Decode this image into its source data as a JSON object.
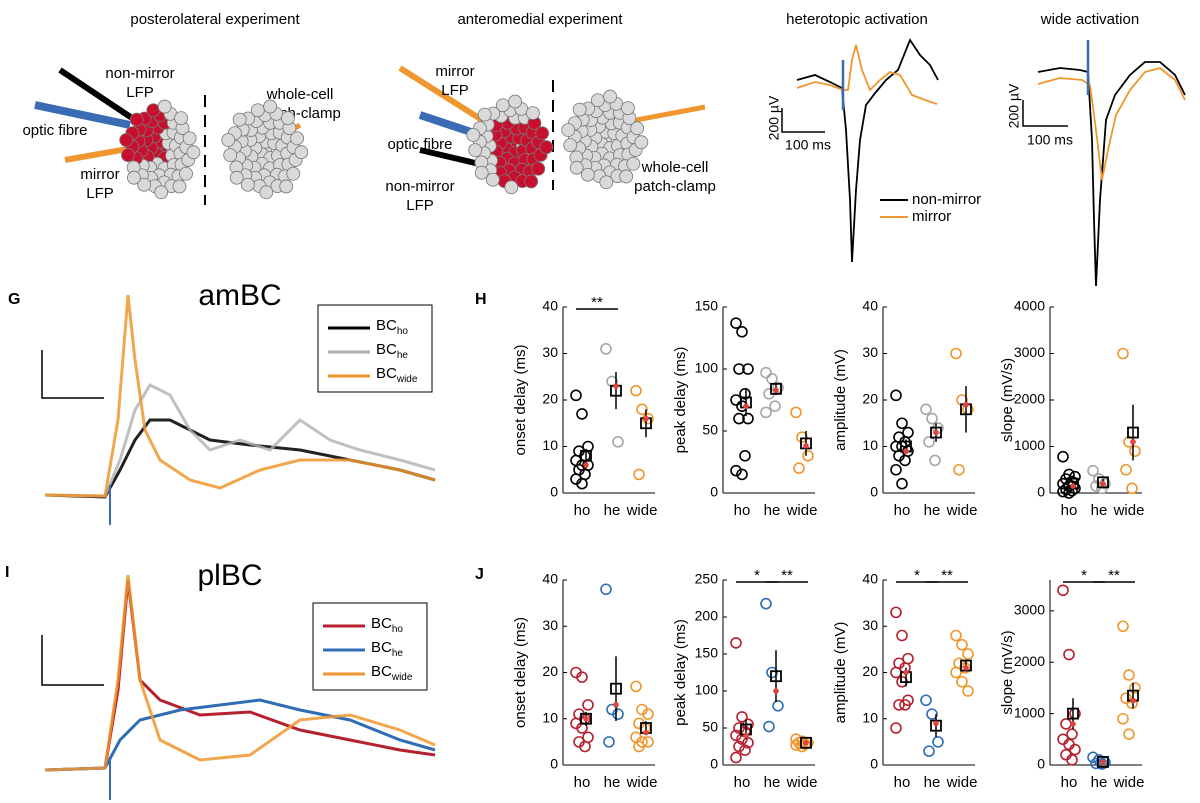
{
  "diagrams": {
    "posterolateral": {
      "title": "posterolateral experiment",
      "non_mirror": [
        "non-mirror",
        "LFP"
      ],
      "optic": "optic fibre",
      "mirror": [
        "mirror",
        "LFP"
      ],
      "patch": [
        "whole-cell",
        "patch-clamp"
      ]
    },
    "anteromedial": {
      "title": "anteromedial experiment",
      "mirror": [
        "mirror",
        "LFP"
      ],
      "optic": "optic fibre",
      "non_mirror": [
        "non-mirror",
        "LFP"
      ],
      "patch": [
        "whole-cell",
        "patch-clamp"
      ]
    }
  },
  "traces": {
    "heterotopic": {
      "title": "heterotopic activation",
      "scale_v": "200 µV",
      "scale_t": "100 ms",
      "legend": [
        "non-mirror",
        "mirror"
      ]
    },
    "wide": {
      "title": "wide activation",
      "scale_v": "200 µV",
      "scale_t": "100 ms"
    }
  },
  "panels": {
    "G": {
      "letter": "G",
      "title": "amBC",
      "legend": [
        {
          "text": "BC",
          "sub": "ho"
        },
        {
          "text": "BC",
          "sub": "he"
        },
        {
          "text": "BC",
          "sub": "wide"
        }
      ]
    },
    "H": {
      "letter": "H"
    },
    "I": {
      "letter": "I",
      "title": "plBC",
      "legend": [
        {
          "text": "BC",
          "sub": "ho"
        },
        {
          "text": "BC",
          "sub": "he"
        },
        {
          "text": "BC",
          "sub": "wide"
        }
      ]
    },
    "J": {
      "letter": "J"
    }
  },
  "chart_data": [
    {
      "type": "strip",
      "ylabel": "onset delay (ms)",
      "categories": [
        "ho",
        "he",
        "wide"
      ],
      "colors": [
        "#000000",
        "#a6a6a6",
        "#f0962e"
      ],
      "ylim": [
        0,
        40
      ],
      "yticks": [
        0,
        10,
        20,
        30,
        40
      ],
      "points": [
        [
          21,
          17,
          10,
          9,
          8,
          7,
          6,
          6,
          5,
          4,
          3,
          2
        ],
        [
          31,
          24,
          11
        ],
        [
          22,
          18,
          16,
          4
        ]
      ],
      "means": [
        8,
        22,
        15
      ],
      "errors": [
        1.5,
        4,
        3
      ],
      "medians": [
        6,
        23,
        16
      ],
      "significance": [
        "**",
        null
      ]
    },
    {
      "type": "strip",
      "ylabel": "peak delay (ms)",
      "categories": [
        "ho",
        "he",
        "wide"
      ],
      "colors": [
        "#000000",
        "#a6a6a6",
        "#f0962e"
      ],
      "ylim": [
        0,
        150
      ],
      "yticks": [
        0,
        50,
        100,
        150
      ],
      "points": [
        [
          137,
          130,
          100,
          100,
          80,
          75,
          70,
          60,
          60,
          30,
          18,
          15
        ],
        [
          97,
          92,
          85,
          80,
          70,
          65
        ],
        [
          65,
          45,
          30,
          20
        ]
      ],
      "means": [
        73,
        84,
        40
      ],
      "errors": [
        11,
        5,
        10
      ],
      "medians": [
        70,
        83,
        38
      ],
      "significance": [
        null,
        null
      ]
    },
    {
      "type": "strip",
      "ylabel": "amplitude (mV)",
      "categories": [
        "ho",
        "he",
        "wide"
      ],
      "colors": [
        "#000000",
        "#a6a6a6",
        "#f0962e"
      ],
      "ylim": [
        0,
        40
      ],
      "yticks": [
        0,
        10,
        20,
        30,
        40
      ],
      "points": [
        [
          21,
          15,
          13,
          12,
          11,
          10,
          10,
          9,
          8,
          7,
          5,
          2
        ],
        [
          18,
          16,
          14,
          11,
          7
        ],
        [
          30,
          20,
          18,
          5
        ]
      ],
      "means": [
        10,
        13,
        18
      ],
      "errors": [
        1.5,
        2,
        5
      ],
      "medians": [
        9,
        13,
        19
      ],
      "significance": [
        null,
        null
      ]
    },
    {
      "type": "strip",
      "ylabel": "slope (mV/s)",
      "categories": [
        "ho",
        "he",
        "wide"
      ],
      "colors": [
        "#000000",
        "#a6a6a6",
        "#f0962e"
      ],
      "ylim": [
        0,
        4000
      ],
      "yticks": [
        0,
        1000,
        2000,
        3000,
        4000
      ],
      "points": [
        [
          780,
          400,
          350,
          300,
          250,
          200,
          150,
          100,
          80,
          50,
          30,
          0
        ],
        [
          480,
          300,
          200,
          150,
          100
        ],
        [
          3000,
          1100,
          900,
          500,
          100
        ]
      ],
      "means": [
        200,
        230,
        1300
      ],
      "errors": [
        60,
        70,
        600
      ],
      "medians": [
        150,
        200,
        1100
      ],
      "significance": [
        null,
        null
      ]
    },
    {
      "type": "strip",
      "ylabel": "onset delay (ms)",
      "categories": [
        "ho",
        "he",
        "wide"
      ],
      "colors": [
        "#b5202e",
        "#2f6db5",
        "#f0962e"
      ],
      "ylim": [
        0,
        40
      ],
      "yticks": [
        0,
        10,
        20,
        30,
        40
      ],
      "points": [
        [
          20,
          19,
          13,
          11,
          10,
          9,
          8,
          6,
          5,
          4
        ],
        [
          38,
          12,
          11,
          5
        ],
        [
          17,
          12,
          11,
          9,
          8,
          6,
          5,
          5,
          4
        ]
      ],
      "means": [
        10,
        16.5,
        8
      ],
      "errors": [
        1.5,
        7,
        1.5
      ],
      "medians": [
        10,
        13,
        7
      ],
      "significance": [
        null,
        null
      ]
    },
    {
      "type": "strip",
      "ylabel": "peak delay (ms)",
      "categories": [
        "ho",
        "he",
        "wide"
      ],
      "colors": [
        "#b5202e",
        "#2f6db5",
        "#f0962e"
      ],
      "ylim": [
        0,
        250
      ],
      "yticks": [
        0,
        50,
        100,
        150,
        200,
        250
      ],
      "points": [
        [
          165,
          65,
          55,
          50,
          45,
          40,
          35,
          30,
          25,
          20,
          10
        ],
        [
          218,
          125,
          80,
          52
        ],
        [
          35,
          32,
          30,
          30,
          28,
          27,
          25
        ]
      ],
      "means": [
        48,
        120,
        30
      ],
      "errors": [
        13,
        35,
        2
      ],
      "medians": [
        40,
        100,
        30
      ],
      "significance": [
        "*",
        "**"
      ]
    },
    {
      "type": "strip",
      "ylabel": "amplitude (mV)",
      "categories": [
        "ho",
        "he",
        "wide"
      ],
      "colors": [
        "#b5202e",
        "#2f6db5",
        "#f0962e"
      ],
      "ylim": [
        0,
        40
      ],
      "yticks": [
        0,
        10,
        20,
        30,
        40
      ],
      "points": [
        [
          33,
          28,
          23,
          22,
          21,
          20,
          18,
          14,
          13,
          13,
          8
        ],
        [
          14,
          11,
          5,
          3
        ],
        [
          28,
          26,
          24,
          22,
          21,
          20,
          18,
          16
        ]
      ],
      "means": [
        19,
        8.5,
        21.5
      ],
      "errors": [
        2,
        2.5,
        1.3
      ],
      "medians": [
        20,
        9,
        21
      ],
      "significance": [
        "*",
        "**"
      ]
    },
    {
      "type": "strip",
      "ylabel": "slope (mV/s)",
      "categories": [
        "ho",
        "he",
        "wide"
      ],
      "colors": [
        "#b5202e",
        "#2f6db5",
        "#f0962e"
      ],
      "ylim": [
        0,
        3600
      ],
      "yticks": [
        0,
        1000,
        2000,
        3000
      ],
      "points": [
        [
          3400,
          2150,
          1000,
          800,
          600,
          500,
          400,
          300,
          200,
          100
        ],
        [
          150,
          100,
          50,
          30,
          20
        ],
        [
          2700,
          1750,
          1500,
          1300,
          1200,
          900,
          600
        ]
      ],
      "means": [
        1000,
        60,
        1350
      ],
      "errors": [
        300,
        20,
        250
      ],
      "medians": [
        800,
        50,
        1250
      ],
      "significance": [
        "*",
        "**"
      ]
    }
  ]
}
